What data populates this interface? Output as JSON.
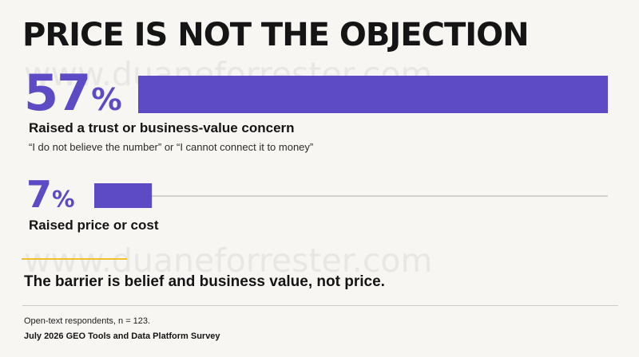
{
  "title": "PRICE IS NOT THE OBJECTION",
  "watermark": "www.duaneforrester.com",
  "colors": {
    "accent": "#5c4bc5",
    "track": "#c9c6c1",
    "rule": "#f0bf2a",
    "background": "#f8f6f2"
  },
  "chart_data": {
    "type": "bar",
    "orientation": "horizontal",
    "unit": "%",
    "categories": [
      "Raised a trust or business-value concern",
      "Raised price or cost"
    ],
    "values": [
      57,
      7
    ],
    "value_labels": [
      "57",
      "7"
    ],
    "annotations": [
      "“I do not believe the number” or “I cannot connect it to money”",
      ""
    ],
    "xlim": [
      0,
      57
    ],
    "grid": false,
    "legend": "none"
  },
  "items": [
    {
      "value_label": "57",
      "sign": "%",
      "label": "Raised a trust or business-value concern",
      "quote": "“I do not believe the number” or “I cannot connect it to money”"
    },
    {
      "value_label": "7",
      "sign": "%",
      "label": "Raised price or cost"
    }
  ],
  "conclusion": "The barrier is belief and business value, not price.",
  "footer": {
    "note": "Open-text respondents, n = 123.",
    "source": "July 2026 GEO Tools and Data Platform Survey"
  }
}
